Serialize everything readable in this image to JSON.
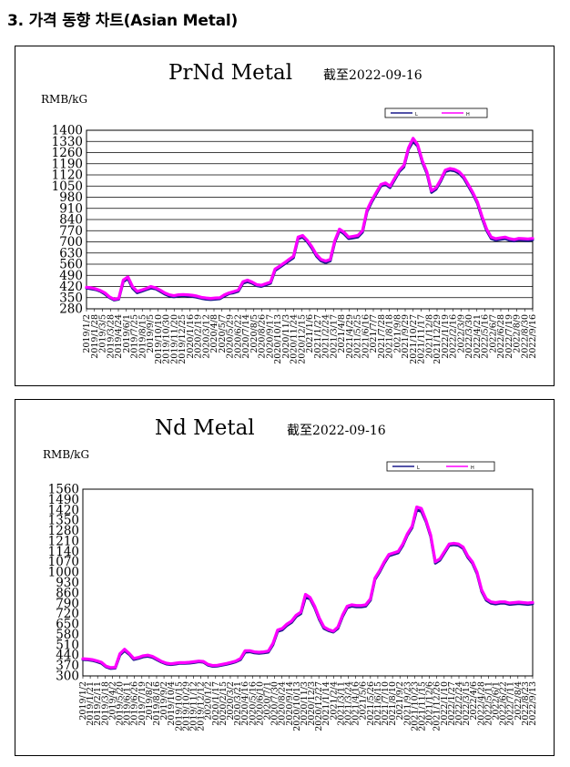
{
  "page": {
    "heading": "3. 가격 동향 차트(Asian Metal)"
  },
  "colors": {
    "low": "#1a1a8c",
    "high": "#ff00ff",
    "grid": "#000000",
    "axis": "#000000"
  },
  "chart_data": [
    {
      "type": "line",
      "title": "PrNd Metal",
      "subtitle": "截至2022-09-16",
      "unit_label": "RMB/kG",
      "legend_position": "top-right",
      "yticks": [
        280,
        350,
        420,
        490,
        560,
        630,
        700,
        770,
        840,
        910,
        980,
        1050,
        1120,
        1190,
        1260,
        1330,
        1400
      ],
      "ylim": [
        280,
        1400
      ],
      "grid": true,
      "xlim_index": [
        0,
        97
      ],
      "xtick_labels": [
        "2019/1/2",
        "2019/1/28",
        "2019/3/5",
        "2019/3/28",
        "2019/4/24",
        "2019/6/1",
        "2019/7/25",
        "2019/8/15",
        "2019/9/5",
        "2019/10/10",
        "2019/10/30",
        "2019/11/20",
        "2019/12/25",
        "2020/1/16",
        "2020/2/19",
        "2020/3/12",
        "2020/4/8",
        "2020/5/7",
        "2020/5/29",
        "2020/6/22",
        "2020/7/14",
        "2020/8/5",
        "2020/8/26",
        "2020/9/17",
        "2020/10/13",
        "2020/11/3",
        "2020/11/24",
        "2020/12/15",
        "2021/1/6",
        "2021/1/27",
        "2021/2/24",
        "2021/3/17",
        "2021/4/8",
        "2021/4/29",
        "2021/5/25",
        "2021/6/16",
        "2021/7/7",
        "2021/7/28",
        "2021/8/18",
        "2021/9/8",
        "2021/9/29",
        "2021/10/27",
        "2021/11/17",
        "2021/12/8",
        "2021/12/29",
        "2022/1/19",
        "2022/2/16",
        "2022/3/9",
        "2022/3/30",
        "2022/4/21",
        "2022/5/16",
        "2022/6/7",
        "2022/6/28",
        "2022/7/19",
        "2022/8/9",
        "2022/8/30",
        "2022/9/16"
      ],
      "series": [
        {
          "name": "L",
          "values": [
            410,
            405,
            400,
            390,
            372,
            350,
            335,
            340,
            450,
            470,
            410,
            380,
            390,
            400,
            410,
            405,
            390,
            372,
            360,
            355,
            360,
            362,
            360,
            358,
            352,
            345,
            340,
            338,
            340,
            343,
            360,
            375,
            380,
            390,
            440,
            450,
            440,
            425,
            420,
            430,
            440,
            520,
            540,
            560,
            580,
            600,
            720,
            730,
            700,
            660,
            610,
            580,
            570,
            580,
            700,
            770,
            750,
            720,
            725,
            730,
            760,
            890,
            950,
            1000,
            1050,
            1060,
            1040,
            1090,
            1140,
            1170,
            1280,
            1330,
            1300,
            1200,
            1130,
            1010,
            1030,
            1080,
            1140,
            1150,
            1145,
            1130,
            1100,
            1050,
            1000,
            940,
            850,
            770,
            720,
            710,
            715,
            720,
            710,
            705,
            712,
            710,
            708,
            712
          ]
        },
        {
          "name": "H",
          "values": [
            415,
            412,
            405,
            395,
            380,
            355,
            340,
            345,
            460,
            480,
            420,
            390,
            398,
            408,
            420,
            412,
            398,
            380,
            368,
            362,
            368,
            370,
            368,
            365,
            360,
            352,
            348,
            345,
            348,
            350,
            368,
            380,
            388,
            398,
            450,
            460,
            448,
            432,
            428,
            438,
            448,
            530,
            548,
            568,
            590,
            610,
            730,
            740,
            710,
            670,
            620,
            590,
            580,
            590,
            710,
            780,
            760,
            730,
            735,
            740,
            770,
            900,
            960,
            1010,
            1060,
            1070,
            1050,
            1100,
            1150,
            1180,
            1290,
            1350,
            1310,
            1210,
            1140,
            1020,
            1040,
            1090,
            1150,
            1160,
            1155,
            1140,
            1110,
            1060,
            1010,
            950,
            860,
            780,
            730,
            720,
            725,
            730,
            720,
            715,
            722,
            720,
            718,
            722
          ]
        }
      ]
    },
    {
      "type": "line",
      "title": "Nd Metal",
      "subtitle": "截至2022-09-16",
      "unit_label": "RMB/kG",
      "legend_position": "top-right",
      "yticks": [
        300,
        370,
        440,
        510,
        580,
        650,
        720,
        790,
        860,
        930,
        1000,
        1070,
        1140,
        1210,
        1280,
        1350,
        1420,
        1490,
        1560
      ],
      "ylim": [
        300,
        1560
      ],
      "grid": false,
      "xlim_index": [
        0,
        97
      ],
      "xtick_labels": [
        "2019/1/2",
        "2019/1/21",
        "2019/2/11",
        "2019/3/18",
        "2019/4/2",
        "2019/5/20",
        "2019/6/11",
        "2019/6/26",
        "2019/7/19",
        "2019/8/2",
        "2019/8/16",
        "2019/9/2",
        "2019/10/4",
        "2019/10/15",
        "2019/10/29",
        "2019/11/12",
        "2019/12/12",
        "2020/1/2",
        "2020/1/17",
        "2020/2/15",
        "2020/3/2",
        "2020/3/21",
        "2020/4/16",
        "2020/5/16",
        "2020/6/10",
        "2020/7/1",
        "2020/7/30",
        "2020/8/24",
        "2020/9/14",
        "2020/10/13",
        "2020/11/3",
        "2020/12/3",
        "2020/12/27",
        "2021/1/14",
        "2021/2/4",
        "2021/3/11",
        "2021/3/24",
        "2021/4/16",
        "2021/5/6",
        "2021/5/26",
        "2021/6/15",
        "2021/7/10",
        "2021/8/10",
        "2021/9/2",
        "2021/9/23",
        "2021/10/23",
        "2021/11/15",
        "2021/12/6",
        "2021/12/26",
        "2022/1/10",
        "2022/1/27",
        "2022/2/24",
        "2022/3/15",
        "2022/4/6",
        "2022/4/28",
        "2022/5/11",
        "2022/6/1",
        "2022/6/22",
        "2022/7/11",
        "2022/8/4",
        "2022/8/23",
        "2022/9/13"
      ],
      "series": [
        {
          "name": "L",
          "values": [
            410,
            408,
            404,
            396,
            385,
            360,
            350,
            352,
            440,
            470,
            445,
            410,
            418,
            428,
            432,
            425,
            408,
            392,
            380,
            376,
            380,
            385,
            384,
            386,
            390,
            395,
            392,
            372,
            364,
            366,
            372,
            378,
            386,
            395,
            410,
            460,
            462,
            455,
            452,
            455,
            460,
            510,
            600,
            610,
            640,
            660,
            700,
            720,
            830,
            820,
            760,
            680,
            620,
            605,
            595,
            620,
            700,
            760,
            770,
            765,
            765,
            770,
            810,
            950,
            1000,
            1060,
            1110,
            1120,
            1130,
            1180,
            1250,
            1300,
            1420,
            1410,
            1340,
            1240,
            1060,
            1080,
            1130,
            1180,
            1185,
            1180,
            1160,
            1100,
            1060,
            990,
            870,
            810,
            790,
            785,
            790,
            790,
            782,
            785,
            788,
            785,
            782,
            786
          ]
        },
        {
          "name": "H",
          "values": [
            416,
            414,
            410,
            402,
            392,
            366,
            356,
            358,
            450,
            480,
            452,
            418,
            425,
            436,
            440,
            432,
            415,
            398,
            386,
            382,
            386,
            390,
            390,
            392,
            396,
            400,
            398,
            378,
            370,
            372,
            378,
            384,
            392,
            400,
            418,
            470,
            470,
            462,
            460,
            462,
            468,
            520,
            610,
            620,
            650,
            670,
            710,
            730,
            850,
            830,
            770,
            690,
            630,
            612,
            602,
            630,
            710,
            770,
            780,
            775,
            775,
            780,
            820,
            960,
            1010,
            1070,
            1120,
            1130,
            1140,
            1190,
            1260,
            1310,
            1440,
            1430,
            1350,
            1250,
            1070,
            1090,
            1140,
            1190,
            1195,
            1190,
            1170,
            1110,
            1070,
            1000,
            880,
            820,
            800,
            795,
            800,
            800,
            792,
            795,
            798,
            795,
            792,
            796
          ]
        }
      ]
    }
  ]
}
